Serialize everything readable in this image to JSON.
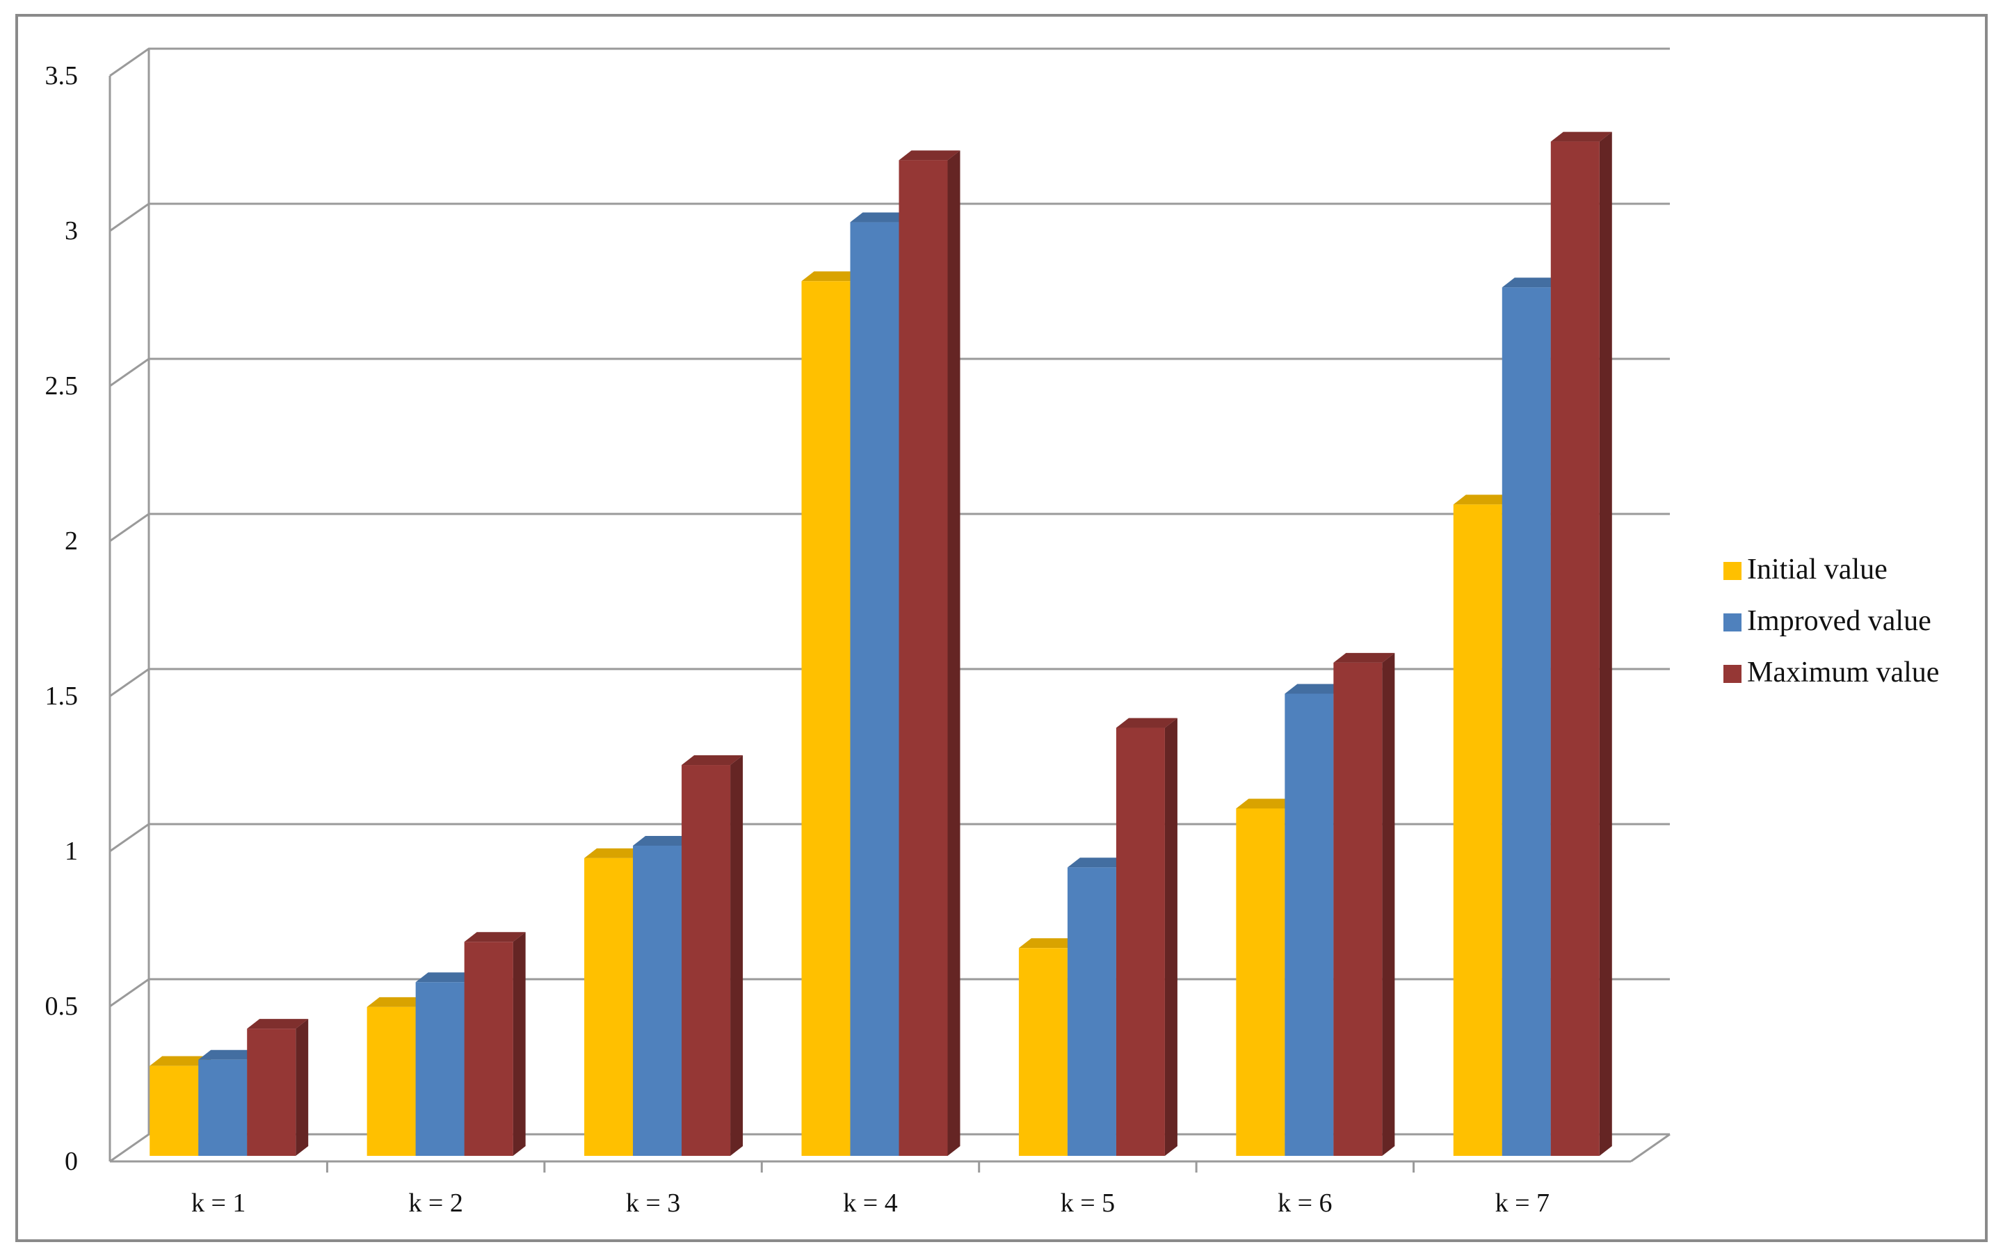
{
  "chart_data": {
    "type": "bar",
    "title": "",
    "xlabel": "",
    "ylabel": "",
    "categories": [
      "k = 1",
      "k = 2",
      "k = 3",
      "k = 4",
      "k = 5",
      "k = 6",
      "k = 7"
    ],
    "series": [
      {
        "name": "Initial value",
        "color": "#ffc000",
        "values": [
          0.29,
          0.48,
          0.96,
          2.82,
          0.67,
          1.12,
          2.1
        ]
      },
      {
        "name": "Improved value",
        "color": "#4f81bd",
        "values": [
          0.31,
          0.56,
          1.0,
          3.01,
          0.93,
          1.49,
          2.8
        ]
      },
      {
        "name": "Maximum value",
        "color": "#953735",
        "values": [
          0.41,
          0.69,
          1.26,
          3.21,
          1.38,
          1.59,
          3.27
        ]
      }
    ],
    "ylim": [
      0,
      3.5
    ],
    "yticks": [
      "0",
      "0.5",
      "1",
      "1.5",
      "2",
      "2.5",
      "3",
      "3.5"
    ],
    "grid": true,
    "legend_position": "right",
    "style": "3d-clustered-column"
  }
}
